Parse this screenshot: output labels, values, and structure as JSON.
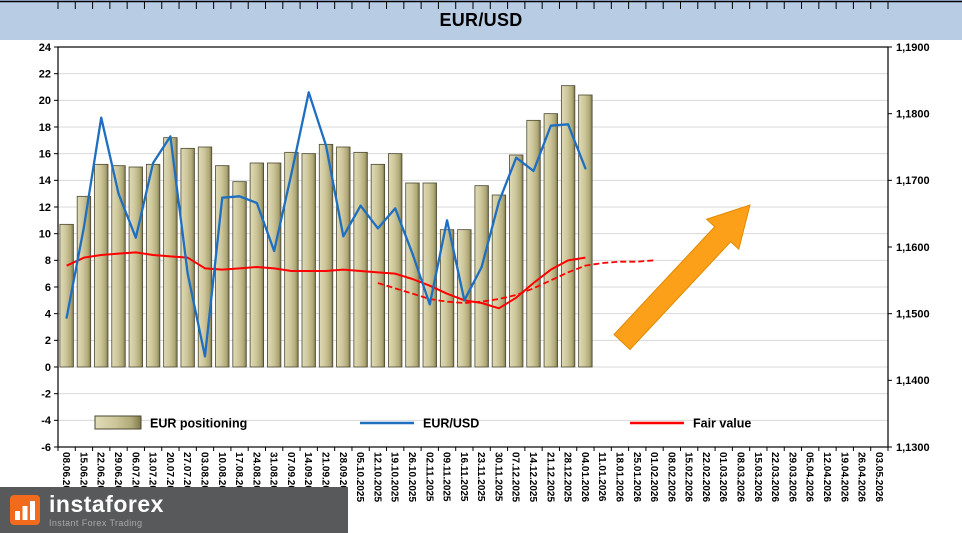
{
  "title": "EUR/USD",
  "logo": {
    "name": "instaforex",
    "tagline": "Instant Forex Trading"
  },
  "chart_data": {
    "type": "bar+line",
    "title": "EUR/USD",
    "grid": true,
    "legend_position": "bottom-inside",
    "left_axis": {
      "min": -6,
      "max": 24,
      "ticks": [
        24,
        22,
        20,
        18,
        16,
        14,
        12,
        10,
        8,
        6,
        4,
        2,
        0,
        -2,
        -4,
        -6
      ]
    },
    "right_axis": {
      "min": 1.13,
      "max": 1.19,
      "ticks": [
        {
          "v": 1.19,
          "label": "1,1900"
        },
        {
          "v": 1.18,
          "label": "1,1800"
        },
        {
          "v": 1.17,
          "label": "1,1700"
        },
        {
          "v": 1.16,
          "label": "1,1600"
        },
        {
          "v": 1.15,
          "label": "1,1500"
        },
        {
          "v": 1.14,
          "label": "1,1400"
        },
        {
          "v": 1.13,
          "label": "1,1300"
        }
      ]
    },
    "x_labels": [
      "08.06.2025",
      "15.06.2025",
      "22.06.2025",
      "29.06.2025",
      "06.07.2025",
      "13.07.2025",
      "20.07.2025",
      "27.07.2025",
      "03.08.2025",
      "10.08.2025",
      "17.08.2025",
      "24.08.2025",
      "31.08.2025",
      "07.09.2025",
      "14.09.2025",
      "21.09.2025",
      "28.09.2025",
      "05.10.2025",
      "12.10.2025",
      "19.10.2025",
      "26.10.2025",
      "02.11.2025",
      "09.11.2025",
      "16.11.2025",
      "23.11.2025",
      "30.11.2025",
      "07.12.2025",
      "14.12.2025",
      "21.12.2025",
      "28.12.2025",
      "04.01.2026",
      "11.01.2026",
      "18.01.2026",
      "25.01.2026",
      "01.02.2026",
      "08.02.2026",
      "15.02.2026",
      "22.02.2026",
      "01.03.2026",
      "08.03.2026",
      "15.03.2026",
      "22.03.2026",
      "29.03.2026",
      "05.04.2026",
      "12.04.2026",
      "19.04.2026",
      "26.04.2026",
      "03.05.2026"
    ],
    "series": [
      {
        "name": "EUR positioning",
        "type": "bar",
        "axis": "left",
        "color": "#b9b284",
        "values": [
          10.7,
          12.8,
          15.2,
          15.1,
          15.0,
          15.2,
          17.2,
          16.4,
          16.5,
          15.1,
          13.9,
          15.3,
          15.3,
          16.1,
          16.0,
          16.7,
          16.5,
          16.1,
          15.2,
          16.0,
          13.8,
          13.8,
          10.3,
          10.3,
          13.6,
          12.9,
          15.9,
          18.5,
          19.0,
          21.1,
          20.4
        ]
      },
      {
        "name": "EUR/USD",
        "type": "line",
        "axis": "right",
        "color": "#1E6FC0",
        "values": [
          1.1494,
          1.163,
          1.1794,
          1.168,
          1.1614,
          1.1726,
          1.1766,
          1.156,
          1.1436,
          1.1674,
          1.1676,
          1.1666,
          1.1594,
          1.171,
          1.1832,
          1.1752,
          1.1616,
          1.1662,
          1.1628,
          1.1658,
          1.159,
          1.1514,
          1.164,
          1.152,
          1.157,
          1.1668,
          1.1734,
          1.1714,
          1.1782,
          1.1784,
          1.1718
        ]
      },
      {
        "name": "Fair value",
        "type": "line",
        "axis": "right",
        "color": "#FF0000",
        "values": [
          1.1572,
          1.1584,
          1.1588,
          1.159,
          1.1592,
          1.1588,
          1.1586,
          1.1584,
          1.1568,
          1.1566,
          1.1568,
          1.157,
          1.1568,
          1.1564,
          1.1564,
          1.1564,
          1.1566,
          1.1564,
          1.1562,
          1.156,
          1.1552,
          1.1542,
          1.153,
          1.152,
          1.1516,
          1.1508,
          1.1524,
          1.1546,
          1.1566,
          1.158,
          1.1584
        ]
      },
      {
        "name": "Fair value forecast",
        "type": "dashed-line",
        "axis": "right",
        "color": "#FF0000",
        "start_index": 18,
        "values": [
          1.1546,
          1.1538,
          1.153,
          1.1522,
          1.1518,
          1.1516,
          1.1518,
          1.1522,
          1.1528,
          1.1538,
          1.155,
          1.1562,
          1.1572,
          1.1576,
          1.1578,
          1.1578,
          1.158
        ]
      }
    ],
    "legend": [
      "EUR positioning",
      "EUR/USD",
      "Fair value"
    ],
    "annotation_arrow": {
      "direction": "up-right",
      "color": "#FBA018",
      "border": "#E08A00"
    }
  }
}
